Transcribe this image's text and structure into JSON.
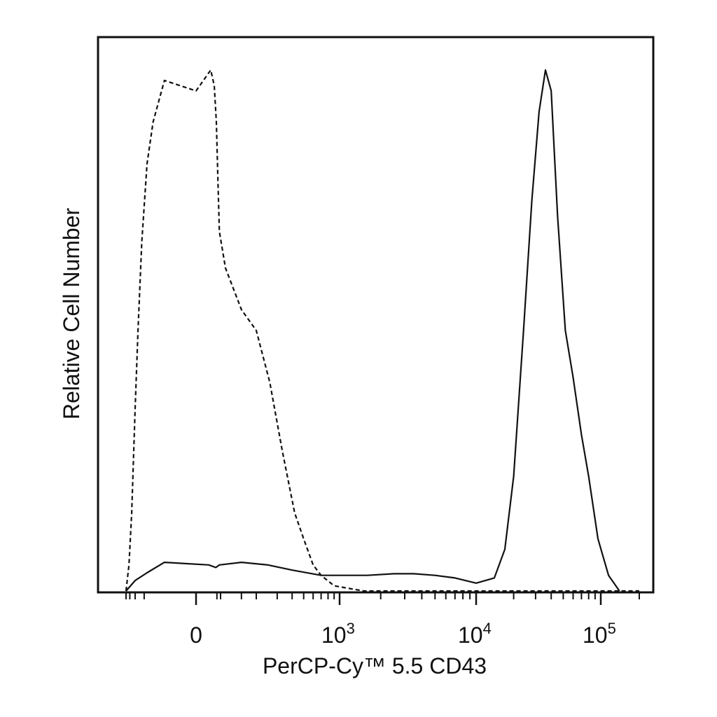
{
  "chart_data": {
    "type": "line",
    "title": "",
    "xlabel": "PerCP-Cy™ 5.5 CD43",
    "ylabel": "Relative Cell Number",
    "x_scale": "biexponential",
    "xlim": [
      -200,
      200000
    ],
    "ylim": [
      0,
      1
    ],
    "grid": false,
    "legend": "none",
    "tick_labels": [
      {
        "value": 0,
        "base": "0",
        "exp": ""
      },
      {
        "value": 1000,
        "base": "10",
        "exp": "3"
      },
      {
        "value": 10000,
        "base": "10",
        "exp": "4"
      },
      {
        "value": 100000,
        "base": "10",
        "exp": "5"
      }
    ],
    "series": [
      {
        "line_style": "dashed",
        "color": "#111111",
        "points": [
          [
            -200,
            0.0
          ],
          [
            -160,
            0.05
          ],
          [
            -130,
            0.15
          ],
          [
            -100,
            0.35
          ],
          [
            -80,
            0.5
          ],
          [
            -60,
            0.67
          ],
          [
            -40,
            0.82
          ],
          [
            -25,
            0.9
          ],
          [
            -10,
            0.98
          ],
          [
            0,
            0.96
          ],
          [
            15,
            1.0
          ],
          [
            30,
            0.97
          ],
          [
            45,
            0.9
          ],
          [
            60,
            0.79
          ],
          [
            80,
            0.69
          ],
          [
            110,
            0.62
          ],
          [
            150,
            0.54
          ],
          [
            200,
            0.5
          ],
          [
            260,
            0.4
          ],
          [
            330,
            0.27
          ],
          [
            420,
            0.15
          ],
          [
            500,
            0.1
          ],
          [
            600,
            0.05
          ],
          [
            700,
            0.03
          ],
          [
            900,
            0.01
          ],
          [
            1500,
            0.0
          ],
          [
            200000,
            0.0
          ]
        ]
      },
      {
        "line_style": "solid",
        "color": "#111111",
        "points": [
          [
            -200,
            0.0
          ],
          [
            -100,
            0.02
          ],
          [
            -40,
            0.035
          ],
          [
            -10,
            0.055
          ],
          [
            10,
            0.05
          ],
          [
            40,
            0.045
          ],
          [
            80,
            0.05
          ],
          [
            150,
            0.055
          ],
          [
            250,
            0.05
          ],
          [
            400,
            0.04
          ],
          [
            700,
            0.03
          ],
          [
            1000,
            0.03
          ],
          [
            1600,
            0.03
          ],
          [
            2500,
            0.033
          ],
          [
            3500,
            0.033
          ],
          [
            5000,
            0.03
          ],
          [
            7000,
            0.025
          ],
          [
            10000,
            0.015
          ],
          [
            14000,
            0.025
          ],
          [
            17000,
            0.08
          ],
          [
            20000,
            0.22
          ],
          [
            24000,
            0.5
          ],
          [
            28000,
            0.75
          ],
          [
            32000,
            0.92
          ],
          [
            36000,
            1.0
          ],
          [
            40000,
            0.96
          ],
          [
            45000,
            0.72
          ],
          [
            52000,
            0.5
          ],
          [
            60000,
            0.41
          ],
          [
            70000,
            0.3
          ],
          [
            80000,
            0.22
          ],
          [
            95000,
            0.1
          ],
          [
            115000,
            0.03
          ],
          [
            140000,
            0.0
          ]
        ]
      }
    ]
  }
}
